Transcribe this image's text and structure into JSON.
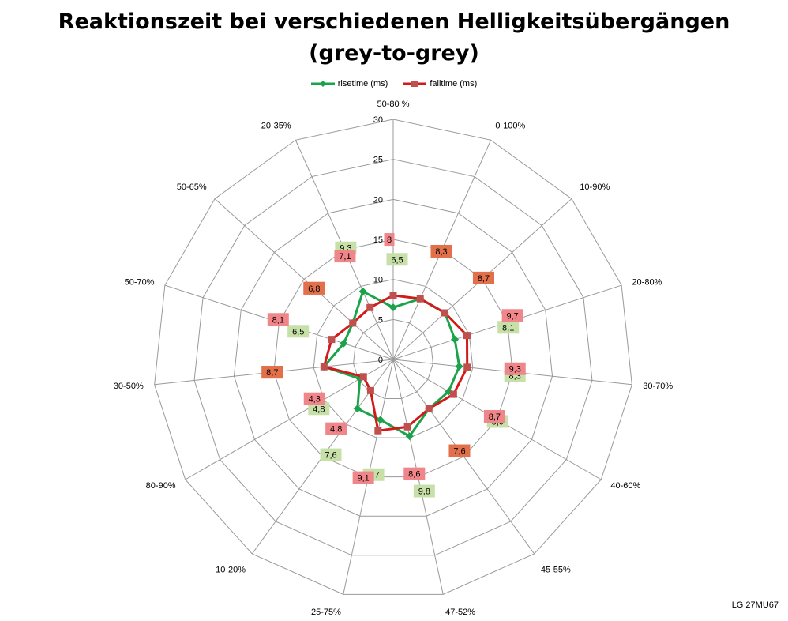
{
  "title_line1": "Reaktionszeit bei verschiedenen Helligkeitsübergängen",
  "title_line2": "(grey-to-grey)",
  "footer": "LG 27MU67",
  "colors": {
    "rise": "#1aa34a",
    "fall": "#d21a1a",
    "rise_label_bg": "#c6e0a8",
    "fall_label_bg": "#f0868a",
    "overlap_label_bg": "#e2704a",
    "grid": "#999999"
  },
  "legend": [
    {
      "name": "risetime (ms)",
      "marker": "diamond"
    },
    {
      "name": "falltime (ms)",
      "marker": "square"
    }
  ],
  "chart_data": {
    "type": "radar",
    "title": "Reaktionszeit bei verschiedenen Helligkeitsübergängen (grey-to-grey)",
    "categories": [
      "50-80 %",
      "0-100%",
      "10-90%",
      "20-80%",
      "30-70%",
      "40-60%",
      "45-55%",
      "47-52%",
      "25-75%",
      "10-20%",
      "80-90%",
      "30-50%",
      "50-70%",
      "50-65%",
      "20-35%"
    ],
    "rlim": [
      0,
      30
    ],
    "ticks": [
      0,
      5,
      10,
      15,
      20,
      25,
      30
    ],
    "grid": true,
    "legend_position": "top",
    "series": [
      {
        "name": "risetime (ms)",
        "values": [
          6.5,
          8.3,
          8.7,
          8.1,
          8.3,
          8.0,
          7.6,
          9.8,
          7.7,
          7.6,
          4.8,
          8.7,
          6.5,
          6.8,
          9.3
        ],
        "labels": [
          "6,5",
          "8,3",
          "8,7",
          "8,1",
          "8,3",
          "8,0",
          "7,6",
          "9,8",
          "7,7",
          "7,6",
          "4,8",
          "8,7",
          "6,5",
          "6,8",
          "9,3"
        ]
      },
      {
        "name": "falltime (ms)",
        "values": [
          8.0,
          8.3,
          8.7,
          9.7,
          9.3,
          8.7,
          7.6,
          8.6,
          9.1,
          4.8,
          4.3,
          8.7,
          8.1,
          6.8,
          7.1
        ],
        "labels": [
          "8",
          "8,3",
          "8,7",
          "9,7",
          "9,3",
          "8,7",
          "7,6",
          "8,6",
          "9,1",
          "4,8",
          "4,3",
          "8,7",
          "8,1",
          "6,8",
          "7,1"
        ]
      }
    ]
  }
}
